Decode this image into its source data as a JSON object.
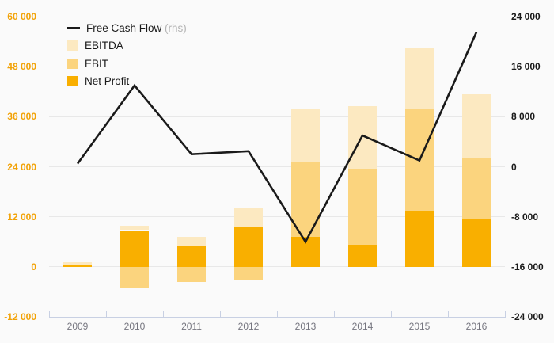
{
  "colors": {
    "background": "#FAFAFA",
    "gridline": "#E8E8E8",
    "axis_line": "#C8D0E3",
    "left_tick_labels": "#F2A206",
    "right_tick_labels": "#1A1A1A",
    "year_labels": "#75757F",
    "fcf_line": "#1A1A1A",
    "ebitda": "#FCE9C1",
    "ebit": "#FBD47E",
    "net_profit": "#F9AF00",
    "rhs_suffix": "#B3B3B3"
  },
  "legend": [
    {
      "label": "Free Cash Flow",
      "suffix": " (rhs)",
      "swatch": "line",
      "color": "#1A1A1A"
    },
    {
      "label": "EBITDA",
      "suffix": "",
      "swatch": "square",
      "color": "#FCE9C1"
    },
    {
      "label": "EBIT",
      "suffix": "",
      "swatch": "square",
      "color": "#FBD47E"
    },
    {
      "label": "Net Profit",
      "suffix": "",
      "swatch": "square",
      "color": "#F9AF00"
    }
  ],
  "chart_data": {
    "type": "combo: stacked bar (lhs) + line (rhs)",
    "categories": [
      "2009",
      "2010",
      "2011",
      "2012",
      "2013",
      "2014",
      "2015",
      "2016"
    ],
    "series": [
      {
        "name": "Free Cash Flow (rhs)",
        "type": "line",
        "axis": "right",
        "values": [
          500,
          13000,
          2000,
          2500,
          -12000,
          5000,
          1000,
          21500
        ]
      },
      {
        "name": "EBITDA",
        "type": "bar-segment",
        "axis": "left",
        "color": "#FCE9C1",
        "values": [
          600,
          1000,
          2100,
          4800,
          13000,
          15000,
          14700,
          15200
        ]
      },
      {
        "name": "EBIT",
        "type": "bar-segment",
        "axis": "left",
        "color": "#FBD47E",
        "values": [
          0,
          -5000,
          -3700,
          -3000,
          17800,
          18200,
          24200,
          14500
        ]
      },
      {
        "name": "Net Profit",
        "type": "bar-segment",
        "axis": "left",
        "color": "#F9AF00",
        "values": [
          500,
          8800,
          5000,
          9500,
          7200,
          5300,
          13500,
          11600
        ]
      }
    ],
    "stack_note": "bars stacked from zero in order: Net Profit, EBIT, EBITDA; negative EBIT segments drawn below zero",
    "left_axis": {
      "tick_labels": [
        "60 000",
        "48 000",
        "36 000",
        "24 000",
        "12 000",
        "0",
        "-12 000"
      ],
      "tick_values": [
        60000,
        48000,
        36000,
        24000,
        12000,
        0,
        -12000
      ],
      "range": [
        -12000,
        60000
      ]
    },
    "right_axis": {
      "tick_labels": [
        "24 000",
        "16 000",
        "8 000",
        "0",
        "-8 000",
        "-16 000",
        "-24 000"
      ],
      "tick_values": [
        24000,
        16000,
        8000,
        0,
        -8000,
        -16000,
        -24000
      ],
      "range": [
        -24000,
        24000
      ]
    },
    "grid": true,
    "legend_position": "top-left inside plot"
  }
}
